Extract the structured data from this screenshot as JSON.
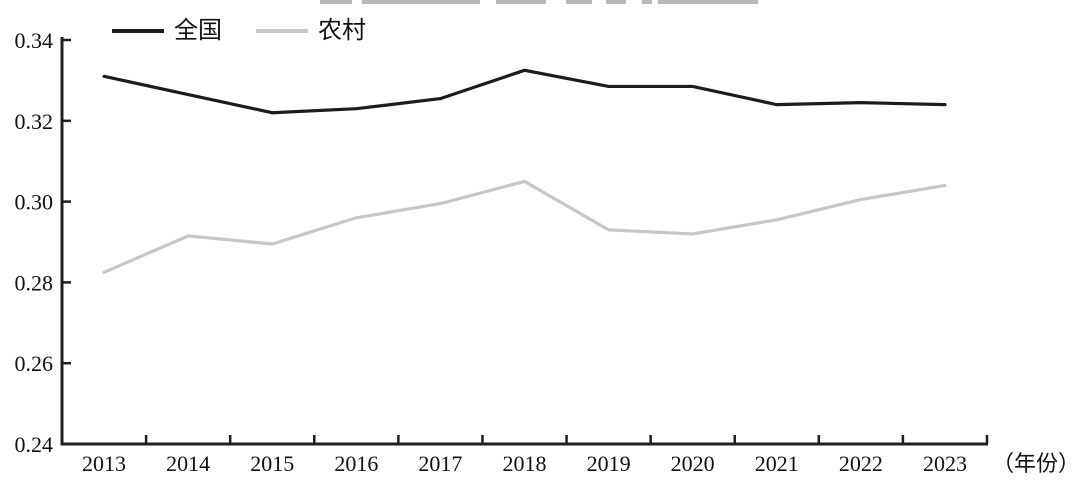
{
  "chart_data": {
    "type": "line",
    "x": [
      "2013",
      "2014",
      "2015",
      "2016",
      "2017",
      "2018",
      "2019",
      "2020",
      "2021",
      "2022",
      "2023"
    ],
    "series": [
      {
        "name": "全国",
        "color": "#1c1c1c",
        "values": [
          0.331,
          0.3265,
          0.322,
          0.323,
          0.3255,
          0.3325,
          0.3285,
          0.3285,
          0.324,
          0.3245,
          0.324
        ]
      },
      {
        "name": "农村",
        "color": "#c7c7c7",
        "values": [
          0.2825,
          0.2915,
          0.2895,
          0.296,
          0.2995,
          0.305,
          0.293,
          0.292,
          0.2955,
          0.3005,
          0.304
        ]
      }
    ],
    "title": "",
    "xlabel": "（年份）",
    "ylabel": "",
    "ylim": [
      0.24,
      0.34
    ],
    "yticks": [
      0.24,
      0.26,
      0.28,
      0.3,
      0.32,
      0.34
    ],
    "grid": false,
    "legend_position": "top-left",
    "colors": {
      "axis": "#1f1f1f",
      "text": "#111111"
    }
  },
  "legend": {
    "national_label": "全国",
    "rural_label": "农村"
  }
}
